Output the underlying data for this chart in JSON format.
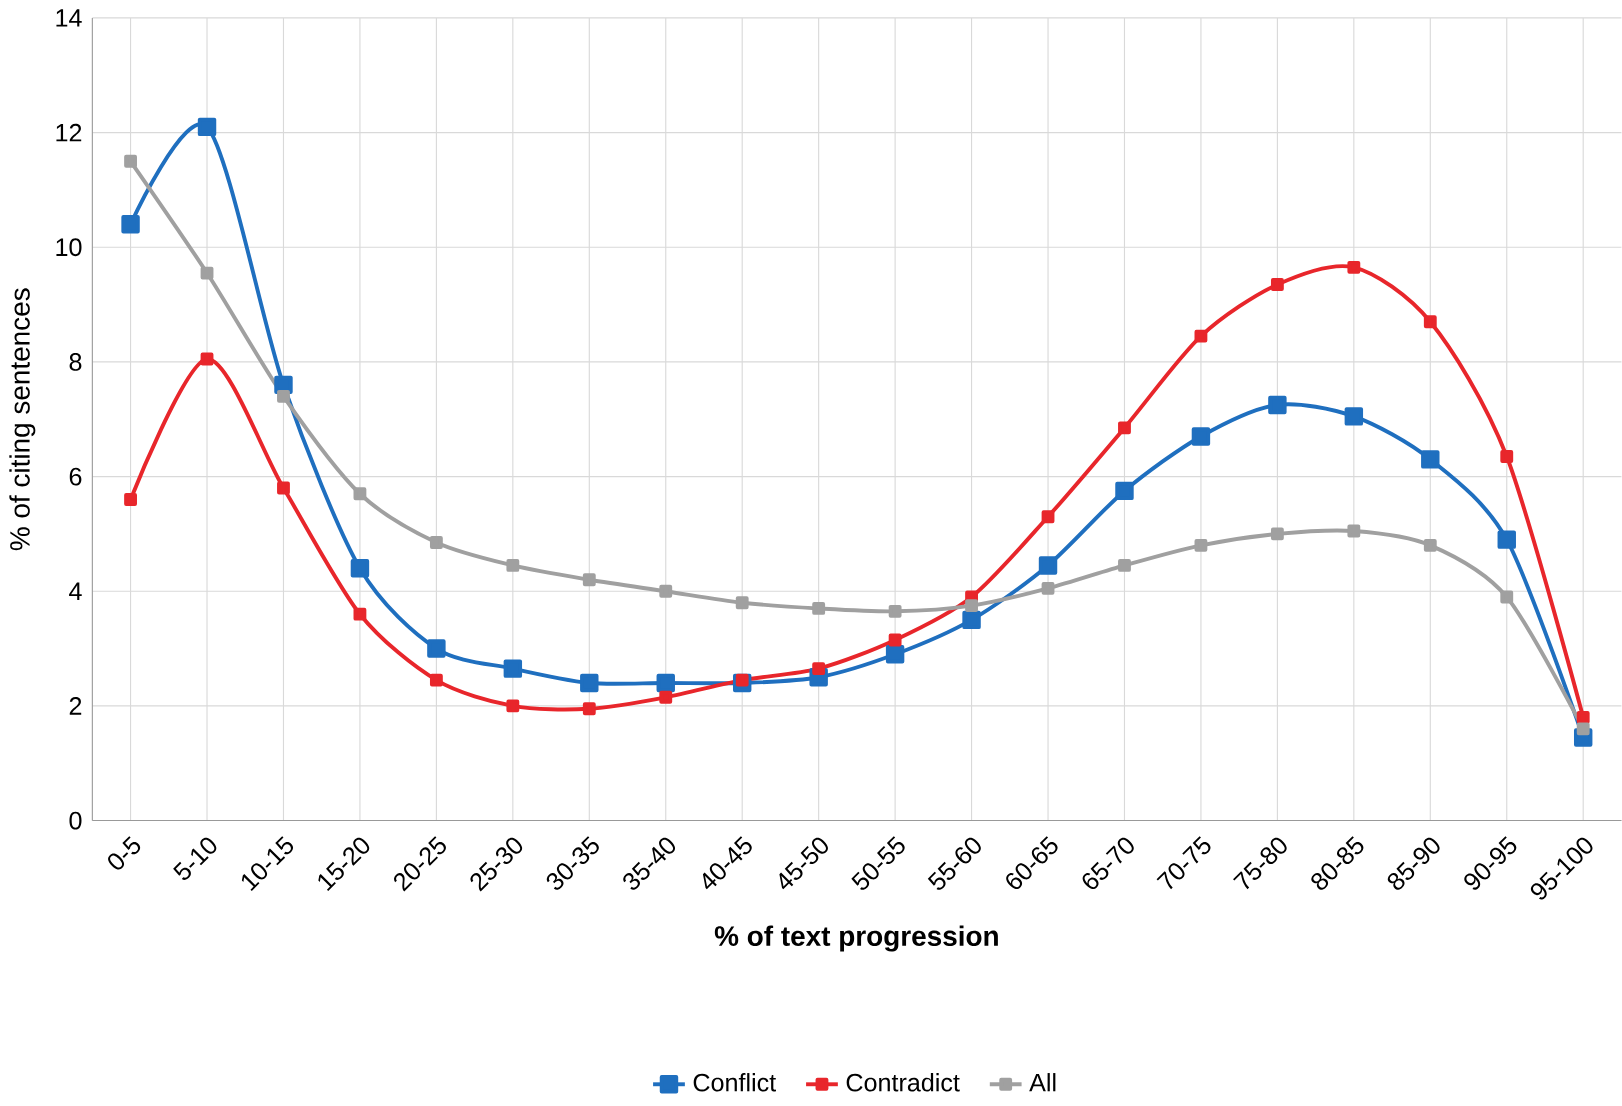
{
  "chart_data": {
    "type": "line",
    "xlabel": "% of text progression",
    "ylabel": "% of citing sentences",
    "categories": [
      "0-5",
      "5-10",
      "10-15",
      "15-20",
      "20-25",
      "25-30",
      "30-35",
      "35-40",
      "40-45",
      "45-50",
      "50-55",
      "55-60",
      "60-65",
      "65-70",
      "70-75",
      "75-80",
      "80-85",
      "85-90",
      "90-95",
      "95-100"
    ],
    "series": [
      {
        "name": "Conflict",
        "color": "#1f6fbf",
        "values": [
          10.4,
          12.1,
          7.6,
          4.4,
          3.0,
          2.65,
          2.4,
          2.4,
          2.4,
          2.5,
          2.9,
          3.5,
          4.45,
          5.75,
          6.7,
          7.25,
          7.05,
          6.3,
          4.9,
          1.45
        ]
      },
      {
        "name": "Contradict",
        "color": "#e8262b",
        "values": [
          5.6,
          8.05,
          5.8,
          3.6,
          2.45,
          2.0,
          1.95,
          2.15,
          2.45,
          2.65,
          3.15,
          3.9,
          5.3,
          6.85,
          8.45,
          9.35,
          9.65,
          8.7,
          6.35,
          1.8
        ]
      },
      {
        "name": "All",
        "color": "#a0a0a0",
        "values": [
          11.5,
          9.55,
          7.4,
          5.7,
          4.85,
          4.45,
          4.2,
          4.0,
          3.8,
          3.7,
          3.65,
          3.75,
          4.05,
          4.45,
          4.8,
          5.0,
          5.05,
          4.8,
          3.9,
          1.6
        ]
      }
    ],
    "ylim": [
      0,
      14
    ],
    "yticks": [
      0,
      2,
      4,
      6,
      8,
      10,
      12,
      14
    ],
    "grid": true,
    "legend": "bottom",
    "marker": "square",
    "line_style": "solid"
  }
}
